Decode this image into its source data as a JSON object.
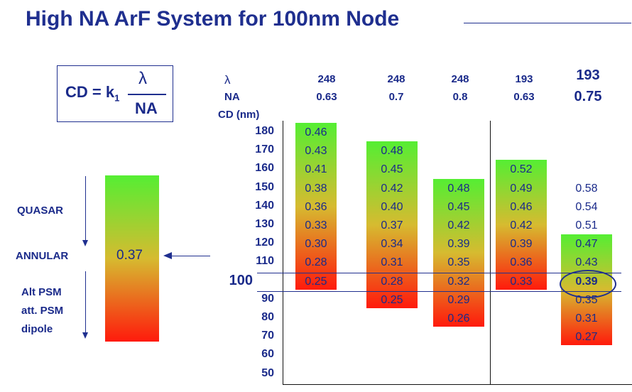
{
  "title": "High NA ArF System for 100nm Node",
  "formula": {
    "lhs": "CD = k",
    "subscript": "1",
    "numerator": "λ",
    "denominator": "NA"
  },
  "resolution_bar": {
    "value": "0.37",
    "labels": [
      "QUASAR",
      "ANNULAR",
      "Alt PSM",
      "att. PSM",
      "dipole"
    ]
  },
  "header_labels": {
    "lambda": "λ",
    "na": "NA",
    "cd": "CD (nm)"
  },
  "columns": [
    {
      "lambda": "248",
      "na": "0.63"
    },
    {
      "lambda": "248",
      "na": "0.7"
    },
    {
      "lambda": "248",
      "na": "0.8"
    },
    {
      "lambda": "193",
      "na": "0.63"
    },
    {
      "lambda": "193",
      "na": "0.75"
    }
  ],
  "axis_labels": [
    "180",
    "170",
    "160",
    "150",
    "140",
    "130",
    "120",
    "110",
    "100",
    "90",
    "80",
    "70",
    "60",
    "50"
  ],
  "colors": {
    "text": "#1a2a8a",
    "gradient_top": "#55ee33",
    "gradient_mid": "#d6bb30",
    "gradient_bottom": "#ff1a0c"
  },
  "chart_data": {
    "type": "table",
    "row_header": "CD (nm)",
    "rows_cd": [
      180,
      170,
      160,
      150,
      140,
      130,
      120,
      110,
      100,
      90,
      80,
      70,
      60,
      50
    ],
    "series": [
      {
        "lambda": 248,
        "na": 0.63,
        "cd": [
          180,
          170,
          160,
          150,
          140,
          130,
          120,
          110,
          100
        ],
        "k1": [
          "0.46",
          "0.43",
          "0.41",
          "0.38",
          "0.36",
          "0.33",
          "0.30",
          "0.28",
          "0.25"
        ]
      },
      {
        "lambda": 248,
        "na": 0.7,
        "cd": [
          170,
          160,
          150,
          140,
          130,
          120,
          110,
          100,
          90
        ],
        "k1": [
          "0.48",
          "0.45",
          "0.42",
          "0.40",
          "0.37",
          "0.34",
          "0.31",
          "0.28",
          "0.25"
        ]
      },
      {
        "lambda": 248,
        "na": 0.8,
        "cd": [
          150,
          140,
          130,
          120,
          110,
          100,
          90,
          80
        ],
        "k1": [
          "0.48",
          "0.45",
          "0.42",
          "0.39",
          "0.35",
          "0.32",
          "0.29",
          "0.26"
        ]
      },
      {
        "lambda": 193,
        "na": 0.63,
        "cd": [
          160,
          150,
          140,
          130,
          120,
          110,
          100
        ],
        "k1": [
          "0.52",
          "0.49",
          "0.46",
          "0.42",
          "0.39",
          "0.36",
          "0.33"
        ]
      },
      {
        "lambda": 193,
        "na": 0.75,
        "cd": [
          150,
          140,
          130,
          120,
          110,
          100,
          90,
          80,
          70
        ],
        "k1": [
          "0.58",
          "0.54",
          "0.51",
          "0.47",
          "0.43",
          "0.39",
          "0.35",
          "0.31",
          "0.27"
        ]
      }
    ],
    "highlighted": {
      "lambda": 193,
      "na": 0.75,
      "cd": 100,
      "k1": "0.39"
    },
    "reference_cd": 100
  }
}
